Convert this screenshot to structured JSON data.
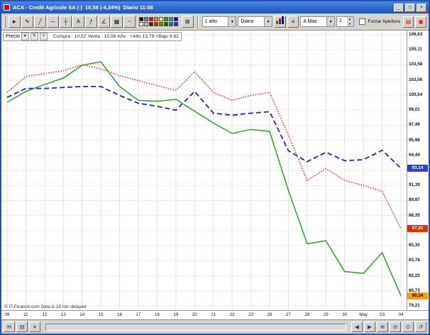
{
  "window": {
    "title": "ACA - Credit Agricole SA (-)",
    "price": "10,58 (-4,34%)",
    "mode": "Diario 11:08",
    "controls": {
      "minimize": "_",
      "maximize": "□",
      "close": "×"
    }
  },
  "toolbar": {
    "tools": [
      {
        "name": "pointer-tool",
        "glyph": "►"
      },
      {
        "name": "pen-tool",
        "glyph": "✎"
      },
      {
        "name": "line-tool",
        "glyph": "╱"
      },
      {
        "name": "horizontal-line-tool",
        "glyph": "─"
      },
      {
        "name": "crosshair-tool",
        "glyph": "┼"
      },
      {
        "name": "text-tool",
        "glyph": "A"
      },
      {
        "name": "fibonacci-tool",
        "glyph": "ƒ"
      },
      {
        "name": "channel-tool",
        "glyph": "∠"
      },
      {
        "name": "grid-tool",
        "glyph": "▦"
      },
      {
        "name": "wave-tool",
        "glyph": "~"
      }
    ],
    "palette": [
      "#000000",
      "#808080",
      "#ff0000",
      "#ff8000",
      "#ffff00",
      "#00b000",
      "#00b0b0",
      "#0000ff",
      "#ffffff",
      "#c0c0c0",
      "#800000",
      "#8b4513",
      "#808000",
      "#006400",
      "#008080",
      "#800080"
    ],
    "trash_glyph": "⊠",
    "dd_arrow": "▼",
    "range_value": "1 año",
    "period_value": "Diario",
    "scale_value": "A Máx",
    "spinner_value": "1",
    "spin_up": "▲",
    "spin_down": "▼",
    "indicator_glyph": "≡",
    "style_button_colors": [
      "#00a000",
      "#d00000",
      "#0000d0"
    ],
    "force_open_label": "Forzar Apertura",
    "right_buttons": [
      {
        "name": "alerts-button",
        "glyph": "▤"
      },
      {
        "name": "detach-button",
        "glyph": "▣"
      }
    ]
  },
  "legend": {
    "series_label": "Precio",
    "dropdown_glyph": "▾",
    "edit_glyph": "✎",
    "add_glyph": "+",
    "quote_text": "Compra : 10,57  Venta : 10,58    Año : +Alto 13,78  +Bajo 9,82"
  },
  "status": {
    "copyright": "© IT-Finance.com  Data is 16 min delayed",
    "mail_glyph": "✉",
    "print_glyph": "▤",
    "delete_glyph": "×",
    "prev_glyph": "◀",
    "next_glyph": "▶",
    "zoom_in_glyph": "⊕",
    "zoom_out_glyph": "⊖",
    "zoom_fit_glyph": "⊙",
    "zoom_reset_glyph": "↺"
  },
  "price_tags": [
    {
      "label": "93,14",
      "value": 93.14,
      "bg": "#2b3fd0",
      "fg": "#ffffff"
    },
    {
      "label": "87,01",
      "value": 87.01,
      "bg": "#e43000",
      "fg": "#ffffff"
    },
    {
      "label": "80,24",
      "value": 80.24,
      "bg": "#ffa000",
      "fg": "#000000"
    }
  ],
  "chart_data": {
    "type": "line",
    "categories": [
      "09",
      "11",
      "12",
      "13",
      "14",
      "15",
      "16",
      "17",
      "18",
      "19",
      "20",
      "21",
      "22",
      "23",
      "26",
      "27",
      "28",
      "29",
      "30",
      "May",
      "03",
      "04"
    ],
    "ylim": [
      78.78,
      107.06
    ],
    "grid": true,
    "legend_position": "none",
    "yticks": [
      {
        "label": "106,63",
        "value": 106.63
      },
      {
        "label": "105,11",
        "value": 105.11
      },
      {
        "label": "103,58",
        "value": 103.58
      },
      {
        "label": "102,06",
        "value": 102.06
      },
      {
        "label": "100,54",
        "value": 100.54
      },
      {
        "label": "99,01",
        "value": 99.01
      },
      {
        "label": "97,49",
        "value": 97.49
      },
      {
        "label": "95,96",
        "value": 95.96
      },
      {
        "label": "94,44",
        "value": 94.44
      },
      {
        "label": "92,92",
        "value": 92.92
      },
      {
        "label": "91,39",
        "value": 91.39
      },
      {
        "label": "89,87",
        "value": 89.87
      },
      {
        "label": "88,35",
        "value": 88.35
      },
      {
        "label": "86,82",
        "value": 86.82
      },
      {
        "label": "85,30",
        "value": 85.3
      },
      {
        "label": "83,78",
        "value": 83.78
      },
      {
        "label": "82,25",
        "value": 82.25
      },
      {
        "label": "80,73",
        "value": 80.73
      },
      {
        "label": "79,21",
        "value": 79.21
      }
    ],
    "series": [
      {
        "name": "comparison-red",
        "color": "#e82020",
        "style": "dotted",
        "values": [
          100.8,
          102.4,
          102.7,
          103.0,
          103.6,
          103.2,
          102.5,
          102.0,
          101.5,
          101.0,
          102.9,
          100.8,
          100.0,
          100.5,
          100.8,
          96.5,
          91.9,
          93.1,
          91.9,
          91.4,
          90.8,
          87.01
        ]
      },
      {
        "name": "comparison-blue",
        "color": "#2020c8",
        "style": "dashed",
        "values": [
          100.3,
          101.2,
          101.2,
          101.3,
          101.4,
          101.4,
          100.5,
          99.7,
          99.4,
          99.0,
          100.9,
          98.7,
          98.5,
          98.7,
          98.85,
          94.9,
          93.8,
          94.75,
          93.9,
          94.0,
          94.95,
          93.14
        ]
      },
      {
        "name": "price-green",
        "color": "#28a428",
        "style": "solid",
        "values": [
          99.8,
          100.9,
          101.6,
          102.25,
          103.55,
          103.9,
          101.4,
          100.0,
          99.9,
          100.1,
          98.9,
          97.7,
          96.66,
          97.06,
          96.86,
          90.9,
          85.5,
          85.8,
          82.68,
          82.5,
          84.6,
          80.24
        ]
      }
    ]
  }
}
